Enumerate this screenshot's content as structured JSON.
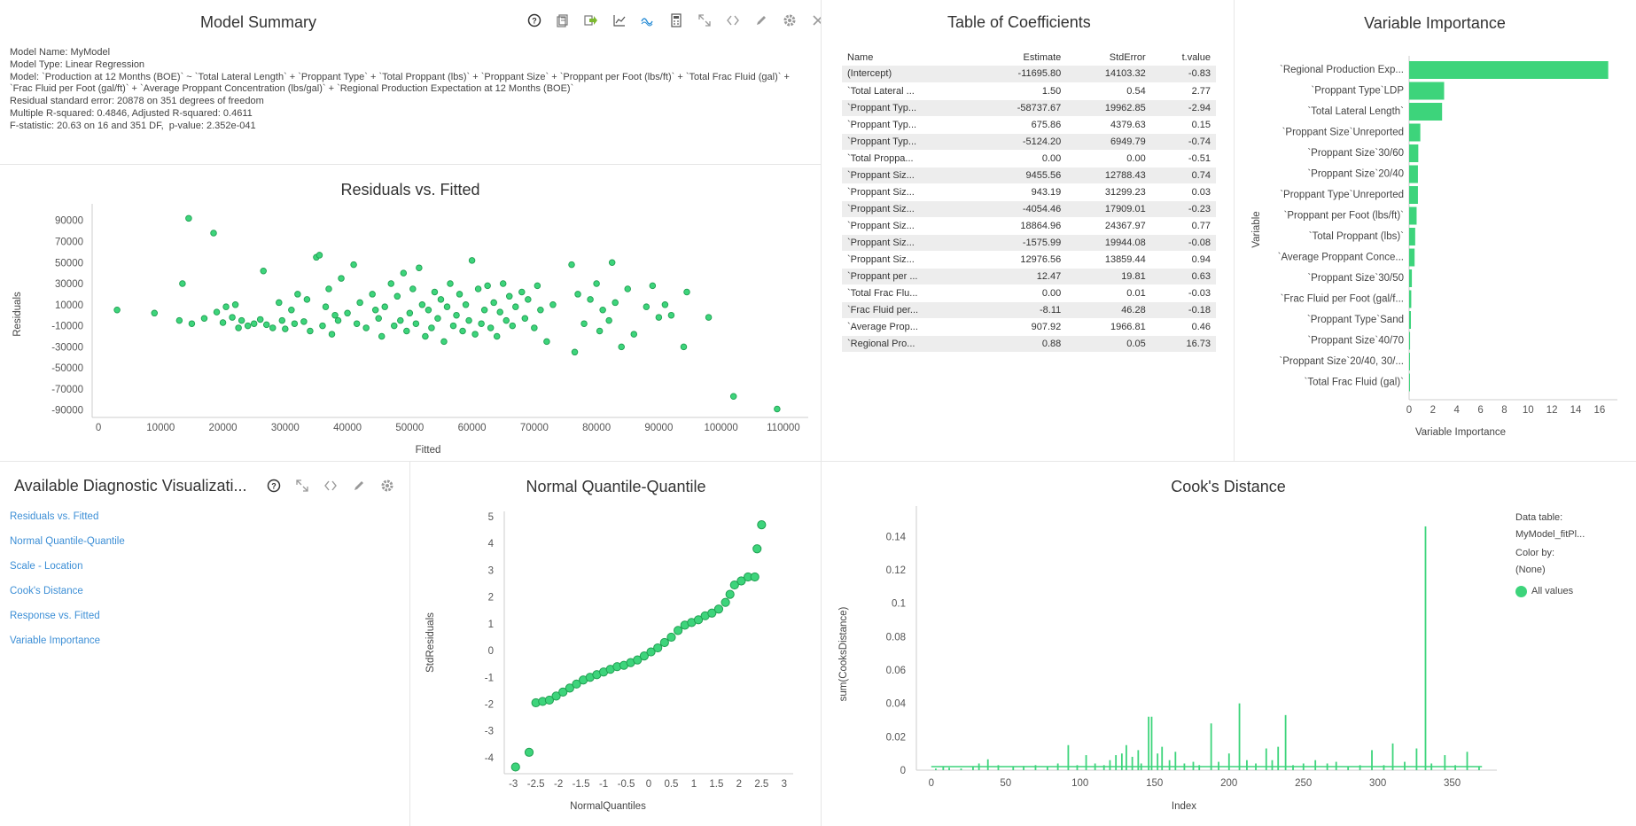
{
  "colors": {
    "accent": "#3dd47b",
    "accent_stroke": "#20a052",
    "link": "#3d8fd6"
  },
  "summary": {
    "title": "Model Summary",
    "lines": [
      "Model Name: MyModel",
      "Model Type: Linear Regression",
      "Model: `Production at 12 Months (BOE)` ~ `Total Lateral Length` + `Proppant Type` + `Total Proppant (lbs)` + `Proppant Size` + `Proppant per Foot (lbs/ft)` + `Total Frac Fluid (gal)` + `Frac Fluid per Foot (gal/ft)` + `Average Proppant Concentration (lbs/gal)` + `Regional Production Expectation at 12 Months (BOE)`",
      "Residual standard error: 20878 on 351 degrees of freedom",
      "Multiple R-squared: 0.4846, Adjusted R-squared: 0.4611",
      "F-statistic: 20.63 on 16 and 351 DF,  p-value: 2.352e-041"
    ],
    "toolbar_icons": [
      "help-icon",
      "copy-icon",
      "export-icon",
      "line-chart-icon",
      "wave-icon",
      "calculator-icon",
      "expand-icon",
      "code-icon",
      "edit-icon",
      "settings-icon",
      "close-icon"
    ]
  },
  "coefficients": {
    "title": "Table of Coefficients",
    "headers": [
      "Name",
      "Estimate",
      "StdError",
      "t.value"
    ],
    "rows": [
      [
        "(Intercept)",
        "-11695.80",
        "14103.32",
        "-0.83"
      ],
      [
        "`Total Lateral ...",
        "1.50",
        "0.54",
        "2.77"
      ],
      [
        "`Proppant Typ...",
        "-58737.67",
        "19962.85",
        "-2.94"
      ],
      [
        "`Proppant Typ...",
        "675.86",
        "4379.63",
        "0.15"
      ],
      [
        "`Proppant Typ...",
        "-5124.20",
        "6949.79",
        "-0.74"
      ],
      [
        "`Total Proppa...",
        "0.00",
        "0.00",
        "-0.51"
      ],
      [
        "`Proppant Siz...",
        "9455.56",
        "12788.43",
        "0.74"
      ],
      [
        "`Proppant Siz...",
        "943.19",
        "31299.23",
        "0.03"
      ],
      [
        "`Proppant Siz...",
        "-4054.46",
        "17909.01",
        "-0.23"
      ],
      [
        "`Proppant Siz...",
        "18864.96",
        "24367.97",
        "0.77"
      ],
      [
        "`Proppant Siz...",
        "-1575.99",
        "19944.08",
        "-0.08"
      ],
      [
        "`Proppant Siz...",
        "12976.56",
        "13859.44",
        "0.94"
      ],
      [
        "`Proppant per ...",
        "12.47",
        "19.81",
        "0.63"
      ],
      [
        "`Total Frac Flu...",
        "0.00",
        "0.01",
        "-0.03"
      ],
      [
        "`Frac Fluid per...",
        "-8.11",
        "46.28",
        "-0.18"
      ],
      [
        "`Average Prop...",
        "907.92",
        "1966.81",
        "0.46"
      ],
      [
        "`Regional Pro...",
        "0.88",
        "0.05",
        "16.73"
      ]
    ]
  },
  "diagnostics": {
    "title": "Available Diagnostic Visualizati...",
    "links": [
      "Residuals vs. Fitted",
      "Normal Quantile-Quantile",
      "Scale - Location",
      "Cook's Distance",
      "Response vs. Fitted",
      "Variable Importance"
    ],
    "toolbar_icons": [
      "help-icon",
      "expand-icon",
      "code-icon",
      "edit-icon",
      "settings-icon",
      "close-icon"
    ]
  },
  "cooks_legend": {
    "data_table_label": "Data table:",
    "data_table_value": "MyModel_fitPl...",
    "color_by_label": "Color by:",
    "color_by_value": "(None)",
    "series_label": "All values"
  },
  "chart_data": [
    {
      "id": "residuals",
      "type": "scatter",
      "title": "Residuals vs. Fitted",
      "xlabel": "Fitted",
      "ylabel": "Residuals",
      "xlim": [
        -1000,
        114000
      ],
      "ylim": [
        -97000,
        99000
      ],
      "xticks": [
        0,
        10000,
        20000,
        30000,
        40000,
        50000,
        60000,
        70000,
        80000,
        90000,
        100000,
        110000
      ],
      "yticks": [
        90000,
        70000,
        50000,
        30000,
        10000,
        -10000,
        -30000,
        -50000,
        -70000,
        -90000
      ],
      "points": [
        [
          3000,
          5000
        ],
        [
          9000,
          2000
        ],
        [
          13000,
          -5000
        ],
        [
          13500,
          30000
        ],
        [
          14500,
          92000
        ],
        [
          15000,
          -8000
        ],
        [
          17000,
          -3000
        ],
        [
          18500,
          78000
        ],
        [
          19000,
          3000
        ],
        [
          20000,
          -7000
        ],
        [
          20500,
          8000
        ],
        [
          21500,
          -2000
        ],
        [
          22000,
          10000
        ],
        [
          22500,
          -12000
        ],
        [
          23000,
          -5000
        ],
        [
          24000,
          -10000
        ],
        [
          25000,
          -8000
        ],
        [
          26000,
          -4000
        ],
        [
          26500,
          42000
        ],
        [
          27000,
          -9000
        ],
        [
          28000,
          -12000
        ],
        [
          29000,
          12000
        ],
        [
          29500,
          -5000
        ],
        [
          30000,
          -13000
        ],
        [
          31000,
          5000
        ],
        [
          31500,
          -8000
        ],
        [
          32000,
          20000
        ],
        [
          33000,
          -6000
        ],
        [
          33500,
          15000
        ],
        [
          34000,
          -15000
        ],
        [
          35000,
          55000
        ],
        [
          35500,
          57000
        ],
        [
          36000,
          -10000
        ],
        [
          36500,
          8000
        ],
        [
          37000,
          25000
        ],
        [
          37500,
          -18000
        ],
        [
          38000,
          0
        ],
        [
          38500,
          -5000
        ],
        [
          39000,
          35000
        ],
        [
          40000,
          2000
        ],
        [
          41000,
          48000
        ],
        [
          41500,
          -8000
        ],
        [
          42000,
          12000
        ],
        [
          43000,
          -12000
        ],
        [
          44000,
          20000
        ],
        [
          44500,
          5000
        ],
        [
          45000,
          -3000
        ],
        [
          45500,
          -20000
        ],
        [
          46000,
          8000
        ],
        [
          47000,
          30000
        ],
        [
          47500,
          -10000
        ],
        [
          48000,
          18000
        ],
        [
          48500,
          -5000
        ],
        [
          49000,
          40000
        ],
        [
          49500,
          -15000
        ],
        [
          50000,
          2000
        ],
        [
          50500,
          25000
        ],
        [
          51000,
          -8000
        ],
        [
          51500,
          45000
        ],
        [
          52000,
          10000
        ],
        [
          52500,
          -20000
        ],
        [
          53000,
          5000
        ],
        [
          53500,
          -12000
        ],
        [
          54000,
          22000
        ],
        [
          54500,
          -3000
        ],
        [
          55000,
          15000
        ],
        [
          55500,
          -25000
        ],
        [
          56000,
          8000
        ],
        [
          56500,
          30000
        ],
        [
          57000,
          -10000
        ],
        [
          57500,
          0
        ],
        [
          58000,
          20000
        ],
        [
          58500,
          -15000
        ],
        [
          59000,
          10000
        ],
        [
          59500,
          -5000
        ],
        [
          60000,
          52000
        ],
        [
          60500,
          -18000
        ],
        [
          61000,
          25000
        ],
        [
          61500,
          -8000
        ],
        [
          62000,
          5000
        ],
        [
          62500,
          28000
        ],
        [
          63000,
          -12000
        ],
        [
          63500,
          12000
        ],
        [
          64000,
          -20000
        ],
        [
          64500,
          3000
        ],
        [
          65000,
          30000
        ],
        [
          65500,
          -5000
        ],
        [
          66000,
          18000
        ],
        [
          66500,
          -10000
        ],
        [
          67000,
          8000
        ],
        [
          68000,
          22000
        ],
        [
          68500,
          -3000
        ],
        [
          69000,
          15000
        ],
        [
          70000,
          -12000
        ],
        [
          70500,
          28000
        ],
        [
          71000,
          5000
        ],
        [
          72000,
          -25000
        ],
        [
          73000,
          10000
        ],
        [
          76000,
          48000
        ],
        [
          76500,
          -35000
        ],
        [
          77000,
          20000
        ],
        [
          78000,
          -8000
        ],
        [
          79000,
          15000
        ],
        [
          80000,
          30000
        ],
        [
          80500,
          -15000
        ],
        [
          81000,
          5000
        ],
        [
          82000,
          -5000
        ],
        [
          82500,
          50000
        ],
        [
          83000,
          12000
        ],
        [
          84000,
          -30000
        ],
        [
          85000,
          25000
        ],
        [
          86000,
          -18000
        ],
        [
          88000,
          8000
        ],
        [
          89000,
          28000
        ],
        [
          90000,
          -2000
        ],
        [
          91000,
          10000
        ],
        [
          92000,
          0
        ],
        [
          94000,
          -30000
        ],
        [
          94500,
          22000
        ],
        [
          98000,
          -2000
        ],
        [
          102000,
          -77000
        ],
        [
          109000,
          -89000
        ]
      ]
    },
    {
      "id": "importance",
      "type": "bar",
      "title": "Variable Importance",
      "xlabel": "Variable Importance",
      "ylabel": "Variable",
      "xlim": [
        0,
        17.5
      ],
      "xticks": [
        0,
        2,
        4,
        6,
        8,
        10,
        12,
        14,
        16
      ],
      "categories": [
        "`Regional Production Exp...",
        "`Proppant Type`LDP",
        "`Total Lateral Length`",
        "`Proppant Size`Unreported",
        "`Proppant Size`30/60",
        "`Proppant Size`20/40",
        "`Proppant Type`Unreported",
        "`Proppant per Foot (lbs/ft)`",
        "`Total Proppant (lbs)`",
        "`Average Proppant Conce...",
        "`Proppant Size`30/50",
        "`Frac Fluid per Foot (gal/f...",
        "`Proppant Type`Sand",
        "`Proppant Size`40/70",
        "`Proppant Size`20/40, 30/...",
        "`Total Frac Fluid (gal)`"
      ],
      "values": [
        16.73,
        2.94,
        2.77,
        0.94,
        0.77,
        0.74,
        0.74,
        0.63,
        0.51,
        0.46,
        0.23,
        0.18,
        0.15,
        0.08,
        0.03,
        0.03
      ]
    },
    {
      "id": "qq",
      "type": "scatter",
      "title": "Normal Quantile-Quantile",
      "xlabel": "NormalQuantiles",
      "ylabel": "StdResiduals",
      "xlim": [
        -3.2,
        3.2
      ],
      "ylim": [
        -4.6,
        5.2
      ],
      "xticks": [
        -3,
        -2.5,
        -2,
        -1.5,
        -1,
        -0.5,
        0,
        0.5,
        1,
        1.5,
        2,
        2.5,
        3
      ],
      "yticks": [
        5,
        4,
        3,
        2,
        1,
        0,
        -1,
        -2,
        -3,
        -4
      ],
      "points": [
        [
          -2.95,
          -4.35
        ],
        [
          -2.65,
          -3.8
        ],
        [
          -2.5,
          -1.95
        ],
        [
          -2.35,
          -1.9
        ],
        [
          -2.2,
          -1.85
        ],
        [
          -2.05,
          -1.7
        ],
        [
          -1.9,
          -1.55
        ],
        [
          -1.75,
          -1.4
        ],
        [
          -1.6,
          -1.25
        ],
        [
          -1.45,
          -1.1
        ],
        [
          -1.3,
          -1.0
        ],
        [
          -1.15,
          -0.9
        ],
        [
          -1.0,
          -0.8
        ],
        [
          -0.85,
          -0.7
        ],
        [
          -0.7,
          -0.6
        ],
        [
          -0.55,
          -0.55
        ],
        [
          -0.4,
          -0.45
        ],
        [
          -0.25,
          -0.35
        ],
        [
          -0.1,
          -0.2
        ],
        [
          0.05,
          -0.05
        ],
        [
          0.2,
          0.1
        ],
        [
          0.35,
          0.3
        ],
        [
          0.5,
          0.5
        ],
        [
          0.65,
          0.75
        ],
        [
          0.8,
          0.95
        ],
        [
          0.95,
          1.05
        ],
        [
          1.1,
          1.15
        ],
        [
          1.25,
          1.3
        ],
        [
          1.4,
          1.4
        ],
        [
          1.55,
          1.55
        ],
        [
          1.7,
          1.8
        ],
        [
          1.8,
          2.1
        ],
        [
          1.9,
          2.45
        ],
        [
          2.05,
          2.6
        ],
        [
          2.2,
          2.75
        ],
        [
          2.35,
          2.75
        ],
        [
          2.4,
          3.8
        ],
        [
          2.5,
          4.7
        ]
      ]
    },
    {
      "id": "cooks",
      "type": "bar",
      "title": "Cook's Distance",
      "xlabel": "Index",
      "ylabel": "sum(CooksDistance)",
      "xlim": [
        -10,
        380
      ],
      "ylim": [
        0,
        0.155
      ],
      "xticks": [
        0,
        50,
        100,
        150,
        200,
        250,
        300,
        350
      ],
      "yticks": [
        0.14,
        0.12,
        0.1,
        0.08,
        0.06,
        0.04,
        0.02,
        0
      ],
      "series": [
        {
          "name": "All values",
          "values": [
            [
              3,
              0.001
            ],
            [
              8,
              0.002
            ],
            [
              12,
              0.0015
            ],
            [
              20,
              0.001
            ],
            [
              28,
              0.002
            ],
            [
              32,
              0.004
            ],
            [
              38,
              0.0065
            ],
            [
              45,
              0.003
            ],
            [
              55,
              0.002
            ],
            [
              62,
              0.0025
            ],
            [
              70,
              0.003
            ],
            [
              78,
              0.002
            ],
            [
              85,
              0.004
            ],
            [
              92,
              0.015
            ],
            [
              98,
              0.003
            ],
            [
              104,
              0.009
            ],
            [
              110,
              0.004
            ],
            [
              116,
              0.003
            ],
            [
              120,
              0.006
            ],
            [
              124,
              0.009
            ],
            [
              128,
              0.01
            ],
            [
              131,
              0.015
            ],
            [
              135,
              0.008
            ],
            [
              139,
              0.012
            ],
            [
              141,
              0.004
            ],
            [
              146,
              0.032
            ],
            [
              148,
              0.032
            ],
            [
              152,
              0.01
            ],
            [
              155,
              0.014
            ],
            [
              160,
              0.006
            ],
            [
              164,
              0.011
            ],
            [
              170,
              0.004
            ],
            [
              176,
              0.005
            ],
            [
              180,
              0.003
            ],
            [
              188,
              0.028
            ],
            [
              193,
              0.005
            ],
            [
              200,
              0.01
            ],
            [
              207,
              0.04
            ],
            [
              212,
              0.006
            ],
            [
              218,
              0.004
            ],
            [
              225,
              0.013
            ],
            [
              229,
              0.006
            ],
            [
              233,
              0.014
            ],
            [
              238,
              0.033
            ],
            [
              243,
              0.003
            ],
            [
              250,
              0.004
            ],
            [
              258,
              0.006
            ],
            [
              266,
              0.004
            ],
            [
              272,
              0.005
            ],
            [
              280,
              0.002
            ],
            [
              288,
              0.003
            ],
            [
              296,
              0.012
            ],
            [
              304,
              0.003
            ],
            [
              310,
              0.016
            ],
            [
              318,
              0.005
            ],
            [
              326,
              0.013
            ],
            [
              332,
              0.146
            ],
            [
              336,
              0.004
            ],
            [
              345,
              0.009
            ],
            [
              352,
              0.003
            ],
            [
              360,
              0.011
            ],
            [
              368,
              0.002
            ]
          ]
        }
      ]
    }
  ]
}
